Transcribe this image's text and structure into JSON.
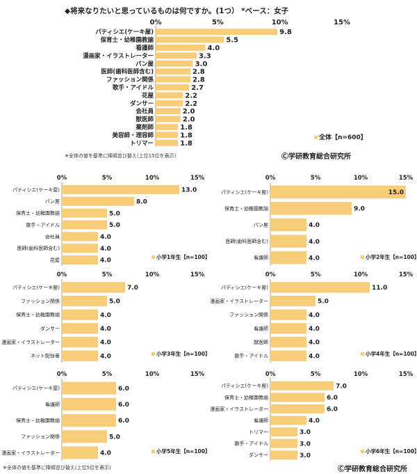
{
  "header": {
    "title": "◆将来なりたいと思っているものは何ですか。(1つ）  *ベース：女子",
    "note_top": "※全体の値を基準に降順並び替え(上位15位を表示)",
    "note_bottom": "※全体の値を基準に降順並び替え(上位5位を表示)",
    "copyright": "ⒸⒸ学研教育総合研究所"
  },
  "colors": {
    "bar": "#F8CD7A",
    "axis": "#888888",
    "text": "#222222"
  },
  "chart_data": [
    {
      "type": "bar",
      "orientation": "horizontal",
      "legend": "全体【n=600】",
      "tick_labels": [
        "0%",
        "5%",
        "10%",
        "15%"
      ],
      "xlim": [
        0,
        15
      ],
      "categories": [
        "パティシエ(ケーキ屋)",
        "保育士・幼稚園教諭",
        "看護師",
        "漫画家・イラストレーター",
        "パン屋",
        "医師(歯科医師含む)",
        "ファッション関係",
        "歌手・アイドル",
        "花屋",
        "ダンサー",
        "会社員",
        "獣医師",
        "薬剤師",
        "美容師・理容師",
        "トリマー"
      ],
      "values": [
        9.8,
        5.5,
        4.0,
        3.3,
        3.0,
        2.8,
        2.8,
        2.7,
        2.2,
        2.2,
        2.0,
        2.0,
        1.8,
        1.8,
        1.8
      ],
      "labels": [
        "9.8",
        "5.5",
        "4.0",
        "3.3",
        "3.0",
        "2.8",
        "2.8",
        "2.7",
        "2.2",
        "2.2",
        "2.0",
        "2.0",
        "1.8",
        "1.8",
        "1.8"
      ]
    },
    {
      "type": "bar",
      "orientation": "horizontal",
      "legend": "小学1年生【n=100】",
      "tick_labels": [
        "0%",
        "5%",
        "10%",
        "15%"
      ],
      "xlim": [
        0,
        15
      ],
      "categories": [
        "パティシエ(ケーキ屋)",
        "パン屋",
        "保育士・幼稚園教諭",
        "歌手・アイドル",
        "会社員",
        "医師(歯科医師含む)",
        "花屋"
      ],
      "values": [
        13.0,
        8.0,
        5.0,
        5.0,
        4.0,
        4.0,
        4.0
      ],
      "labels": [
        "13.0",
        "8.0",
        "5.0",
        "5.0",
        "4.0",
        "4.0",
        "4.0"
      ]
    },
    {
      "type": "bar",
      "orientation": "horizontal",
      "legend": "小学2年生【n=100】",
      "tick_labels": [
        "0%",
        "5%",
        "10%",
        "15%"
      ],
      "xlim": [
        0,
        15
      ],
      "categories": [
        "パティシエ(ケーキ屋)",
        "保育士・幼稚園教諭",
        "パン屋",
        "医師(歯科医師含む)",
        "看護師"
      ],
      "values": [
        15.0,
        9.0,
        4.0,
        4.0,
        4.0
      ],
      "labels": [
        "15.0",
        "9.0",
        "4.0",
        "4.0",
        "4.0"
      ]
    },
    {
      "type": "bar",
      "orientation": "horizontal",
      "legend": "小学3年生【n=100】",
      "tick_labels": [
        "0%",
        "5%",
        "10%",
        "15%"
      ],
      "xlim": [
        0,
        15
      ],
      "categories": [
        "パティシエ(ケーキ屋)",
        "ファッション関係",
        "保育士・幼稚園教諭",
        "ダンサー",
        "漫画家・イラストレーター",
        "ネット配信者"
      ],
      "values": [
        7.0,
        5.0,
        4.0,
        4.0,
        4.0,
        4.0
      ],
      "labels": [
        "7.0",
        "5.0",
        "4.0",
        "4.0",
        "4.0",
        "4.0"
      ]
    },
    {
      "type": "bar",
      "orientation": "horizontal",
      "legend": "小学4年生【n=100】",
      "tick_labels": [
        "0%",
        "5%",
        "10%",
        "15%"
      ],
      "xlim": [
        0,
        15
      ],
      "categories": [
        "パティシエ(ケーキ屋)",
        "漫画家・イラストレーター",
        "ファッション関係",
        "看護師",
        "獣医師",
        "歌手・アイドル"
      ],
      "values": [
        11.0,
        5.0,
        4.0,
        4.0,
        4.0,
        4.0
      ],
      "labels": [
        "11.0",
        "5.0",
        "4.0",
        "4.0",
        "4.0",
        "4.0"
      ]
    },
    {
      "type": "bar",
      "orientation": "horizontal",
      "legend": "小学5年生【n=100】",
      "tick_labels": [
        "0%",
        "5%",
        "10%",
        "15%"
      ],
      "xlim": [
        0,
        15
      ],
      "categories": [
        "パティシエ(ケーキ屋)",
        "看護師",
        "保育士・幼稚園教諭",
        "ファッション関係",
        "漫画家・イラストレーター"
      ],
      "values": [
        6.0,
        6.0,
        6.0,
        5.0,
        4.0
      ],
      "labels": [
        "6.0",
        "6.0",
        "6.0",
        "5.0",
        "4.0"
      ]
    },
    {
      "type": "bar",
      "orientation": "horizontal",
      "legend": "小学6年生【n=100】",
      "tick_labels": [
        "0%",
        "5%",
        "10%",
        "15%"
      ],
      "xlim": [
        0,
        15
      ],
      "categories": [
        "パティシエ(ケーキ屋)",
        "保育士・幼稚園教諭",
        "漫画家・イラストレーター",
        "看護師",
        "トリマー",
        "歌手・アイドル",
        "ダンサー"
      ],
      "values": [
        7.0,
        6.0,
        6.0,
        4.0,
        3.0,
        3.0,
        3.0
      ],
      "labels": [
        "7.0",
        "6.0",
        "6.0",
        "4.0",
        "3.0",
        "3.0",
        "3.0"
      ]
    }
  ]
}
